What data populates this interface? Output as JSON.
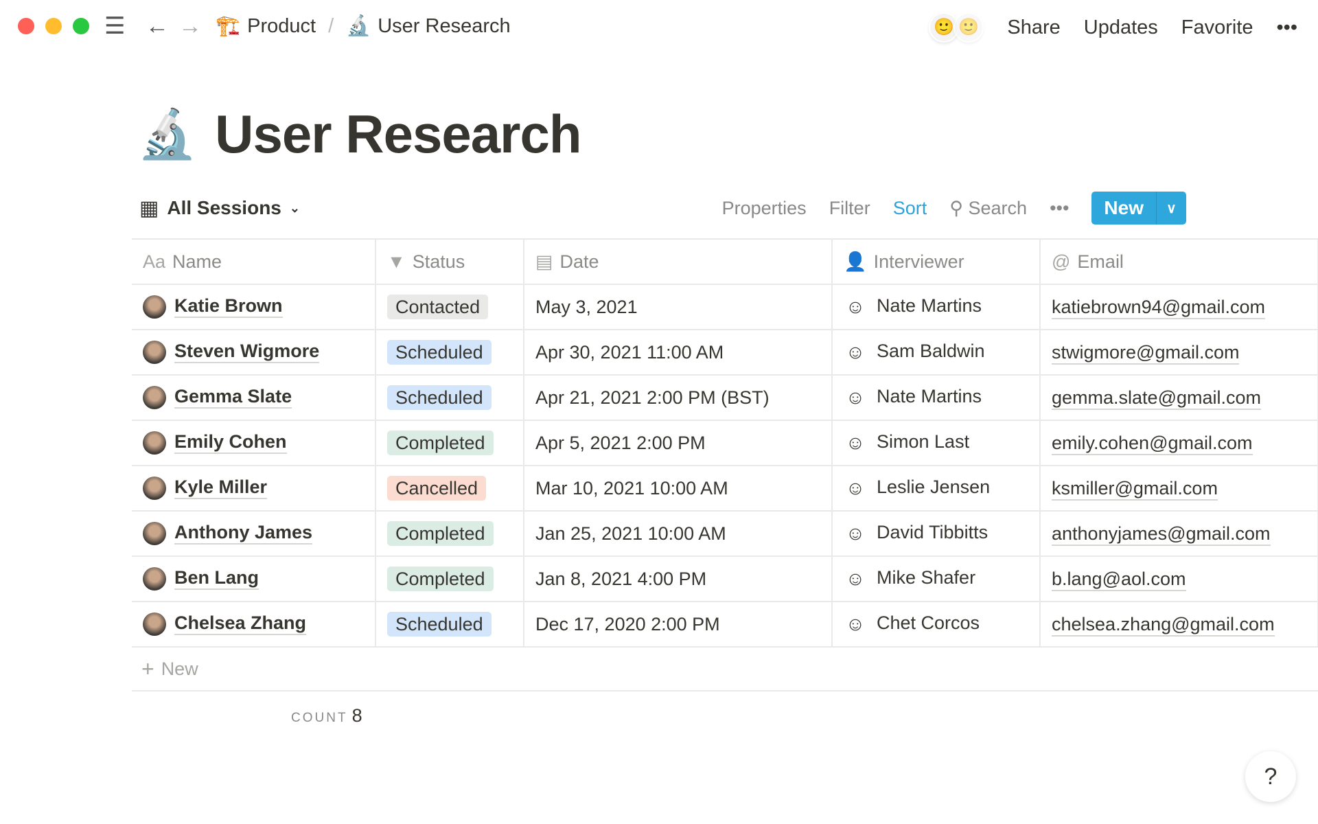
{
  "window": {
    "controls": {
      "close": "#fe5f57",
      "minimize": "#febc2e",
      "maximize": "#28c840"
    }
  },
  "breadcrumb": [
    {
      "icon": "construction-crane-icon",
      "label": "Product"
    },
    {
      "icon": "microscope-icon",
      "label": "User Research"
    }
  ],
  "breadcrumb_separator": "/",
  "topbar": {
    "share": "Share",
    "updates": "Updates",
    "favorite": "Favorite",
    "more": "•••"
  },
  "page": {
    "icon": "microscope-icon",
    "title": "User Research"
  },
  "view": {
    "name": "All Sessions",
    "icon": "table-icon"
  },
  "toolbar": {
    "properties": "Properties",
    "filter": "Filter",
    "sort": "Sort",
    "search": "Search",
    "more": "•••",
    "new": "New",
    "accent": "#2ea8dc"
  },
  "columns": [
    {
      "icon": "Aa",
      "label": "Name"
    },
    {
      "icon": "▼",
      "label": "Status"
    },
    {
      "icon": "▤",
      "label": "Date"
    },
    {
      "icon": "👤",
      "label": "Interviewer"
    },
    {
      "icon": "@",
      "label": "Email"
    }
  ],
  "status_colors": {
    "Contacted": "#e9e9e7",
    "Scheduled": "#d3e5fb",
    "Completed": "#dbece5",
    "Cancelled": "#fcdcd0"
  },
  "rows": [
    {
      "name": "Katie Brown",
      "status": "Contacted",
      "date": "May 3, 2021",
      "interviewer": "Nate Martins",
      "email": "katiebrown94@gmail.com"
    },
    {
      "name": "Steven Wigmore",
      "status": "Scheduled",
      "date": "Apr 30, 2021 11:00 AM",
      "interviewer": "Sam Baldwin",
      "email": "stwigmore@gmail.com"
    },
    {
      "name": "Gemma Slate",
      "status": "Scheduled",
      "date": "Apr 21, 2021 2:00 PM (BST)",
      "interviewer": "Nate Martins",
      "email": "gemma.slate@gmail.com"
    },
    {
      "name": "Emily Cohen",
      "status": "Completed",
      "date": "Apr 5, 2021 2:00 PM",
      "interviewer": "Simon Last",
      "email": "emily.cohen@gmail.com"
    },
    {
      "name": "Kyle Miller",
      "status": "Cancelled",
      "date": "Mar 10, 2021 10:00 AM",
      "interviewer": "Leslie Jensen",
      "email": "ksmiller@gmail.com"
    },
    {
      "name": "Anthony James",
      "status": "Completed",
      "date": "Jan 25, 2021 10:00 AM",
      "interviewer": "David Tibbitts",
      "email": "anthonyjames@gmail.com"
    },
    {
      "name": "Ben Lang",
      "status": "Completed",
      "date": "Jan 8, 2021 4:00 PM",
      "interviewer": "Mike Shafer",
      "email": "b.lang@aol.com"
    },
    {
      "name": "Chelsea Zhang",
      "status": "Scheduled",
      "date": "Dec 17, 2020 2:00 PM",
      "interviewer": "Chet Corcos",
      "email": "chelsea.zhang@gmail.com"
    }
  ],
  "new_row": {
    "icon": "+",
    "label": "New"
  },
  "footer": {
    "count_label": "COUNT",
    "count": "8"
  },
  "help": "?"
}
